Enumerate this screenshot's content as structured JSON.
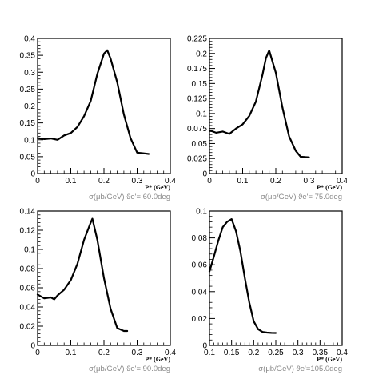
{
  "chart_data": [
    {
      "type": "line",
      "xlabel": "P* (GeV)",
      "caption": "σ(μb/GeV) ϑe'= 60.0deg",
      "xlim": [
        0,
        0.4
      ],
      "ylim": [
        0,
        0.4
      ],
      "xticks": [
        "0",
        "0.1",
        "0.2",
        "0.3",
        "0.4"
      ],
      "yticks": [
        "0",
        "0.05",
        "0.1",
        "0.15",
        "0.2",
        "0.25",
        "0.3",
        "0.35",
        "0.4"
      ],
      "x": [
        0.0,
        0.02,
        0.04,
        0.06,
        0.08,
        0.1,
        0.12,
        0.14,
        0.16,
        0.18,
        0.2,
        0.21,
        0.22,
        0.24,
        0.26,
        0.28,
        0.3,
        0.32,
        0.335
      ],
      "y": [
        0.105,
        0.102,
        0.104,
        0.1,
        0.113,
        0.12,
        0.138,
        0.17,
        0.215,
        0.295,
        0.355,
        0.365,
        0.34,
        0.27,
        0.175,
        0.105,
        0.062,
        0.06,
        0.058
      ]
    },
    {
      "type": "line",
      "xlabel": "P* (GeV)",
      "caption": "σ(μb/GeV) ϑe'= 75.0deg",
      "xlim": [
        0,
        0.4
      ],
      "ylim": [
        0,
        0.225
      ],
      "xticks": [
        "0",
        "0.1",
        "0.2",
        "0.3",
        "0.4"
      ],
      "yticks": [
        "0",
        "0.025",
        "0.05",
        "0.075",
        "0.1",
        "0.125",
        "0.15",
        "0.175",
        "0.2",
        "0.225"
      ],
      "x": [
        0.0,
        0.02,
        0.04,
        0.06,
        0.08,
        0.1,
        0.12,
        0.14,
        0.16,
        0.17,
        0.18,
        0.2,
        0.22,
        0.24,
        0.26,
        0.275,
        0.3
      ],
      "y": [
        0.072,
        0.068,
        0.07,
        0.066,
        0.075,
        0.082,
        0.096,
        0.12,
        0.165,
        0.192,
        0.205,
        0.168,
        0.11,
        0.062,
        0.038,
        0.028,
        0.027
      ]
    },
    {
      "type": "line",
      "xlabel": "P* (GeV)",
      "caption": "σ(μb/GeV) ϑe'= 90.0deg",
      "xlim": [
        0,
        0.4
      ],
      "ylim": [
        0,
        0.14
      ],
      "xticks": [
        "0",
        "0.1",
        "0.2",
        "0.3",
        "0.4"
      ],
      "yticks": [
        "0",
        "0.02",
        "0.04",
        "0.06",
        "0.08",
        "0.1",
        "0.12",
        "0.14"
      ],
      "x": [
        0.0,
        0.02,
        0.04,
        0.05,
        0.06,
        0.08,
        0.1,
        0.12,
        0.14,
        0.16,
        0.165,
        0.18,
        0.2,
        0.22,
        0.24,
        0.26,
        0.27
      ],
      "y": [
        0.053,
        0.049,
        0.05,
        0.048,
        0.052,
        0.058,
        0.068,
        0.085,
        0.11,
        0.128,
        0.132,
        0.11,
        0.07,
        0.038,
        0.018,
        0.015,
        0.015
      ]
    },
    {
      "type": "line",
      "xlabel": "P* (GeV)",
      "caption": "σ(μb/GeV) ϑe'=105.0deg",
      "xlim": [
        0.1,
        0.4
      ],
      "ylim": [
        0,
        0.1
      ],
      "xticks": [
        "0.1",
        "0.15",
        "0.2",
        "0.25",
        "0.3",
        "0.35",
        "0.4"
      ],
      "yticks": [
        "0",
        "0.02",
        "0.04",
        "0.06",
        "0.08",
        "0.1"
      ],
      "x": [
        0.1,
        0.11,
        0.12,
        0.13,
        0.14,
        0.15,
        0.16,
        0.17,
        0.18,
        0.19,
        0.2,
        0.21,
        0.22,
        0.23,
        0.24,
        0.25
      ],
      "y": [
        0.055,
        0.066,
        0.078,
        0.088,
        0.092,
        0.094,
        0.085,
        0.07,
        0.05,
        0.032,
        0.018,
        0.012,
        0.01,
        0.0095,
        0.0093,
        0.0092
      ]
    }
  ]
}
